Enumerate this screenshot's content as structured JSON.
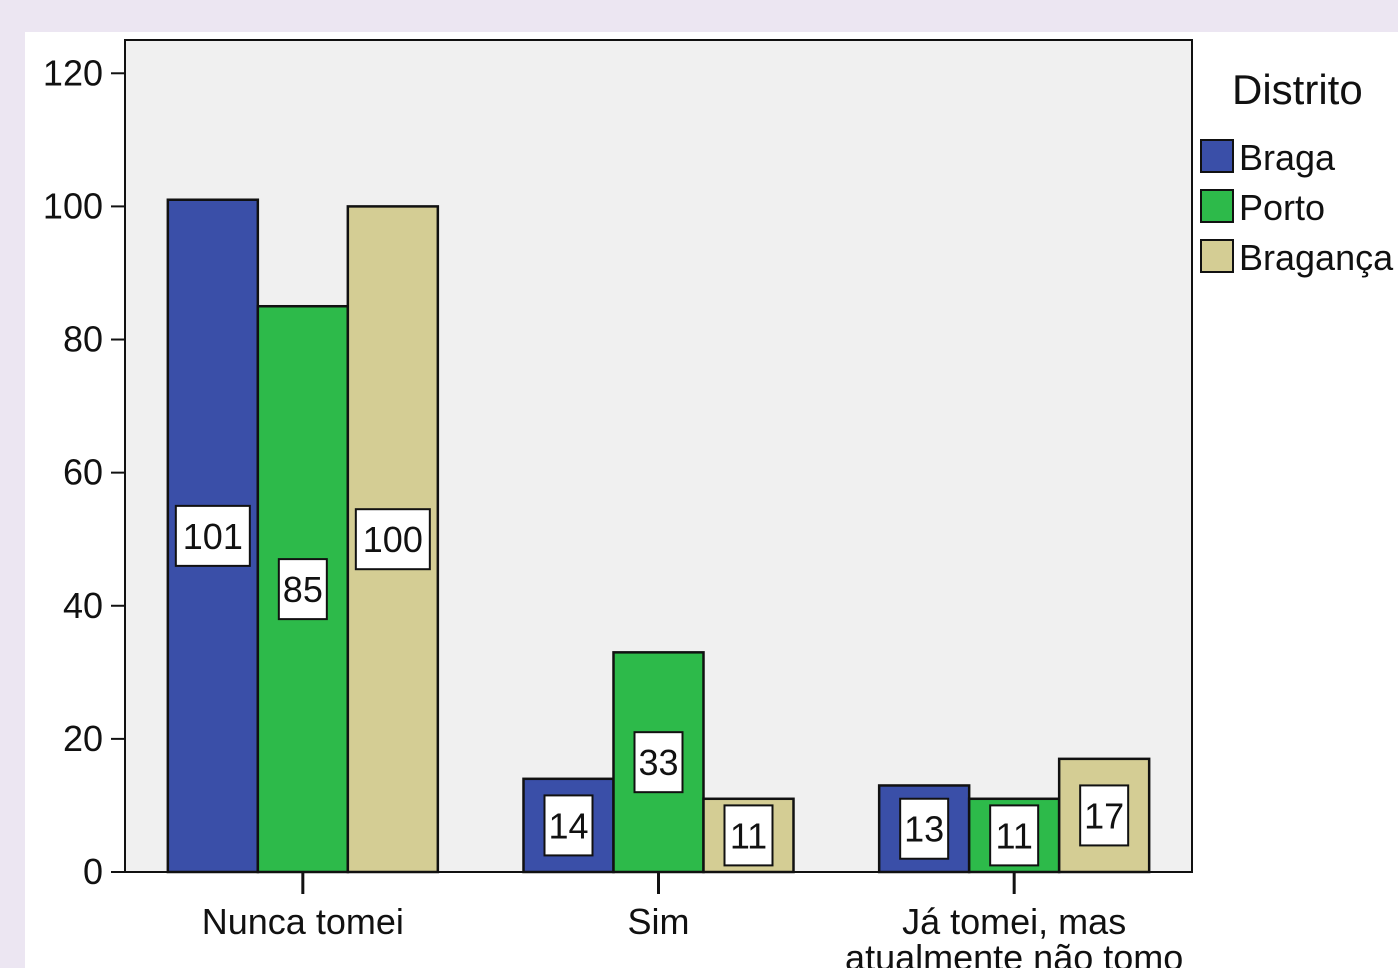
{
  "chart_data": {
    "type": "bar",
    "categories": [
      "Nunca tomei",
      "Sim",
      "Já tomei, mas atualmente não tomo"
    ],
    "category_label_lines": [
      [
        "Nunca tomei"
      ],
      [
        "Sim"
      ],
      [
        "Já tomei, mas",
        "atualmente não tomo"
      ]
    ],
    "series": [
      {
        "name": "Braga",
        "color": "#3a4fa8",
        "values": [
          101,
          14,
          13
        ]
      },
      {
        "name": "Porto",
        "color": "#2dba4a",
        "values": [
          85,
          33,
          11
        ]
      },
      {
        "name": "Bragança",
        "color": "#d4cd94",
        "values": [
          100,
          11,
          17
        ]
      }
    ],
    "yticks": [
      0,
      20,
      40,
      60,
      80,
      100,
      120
    ],
    "ylim": [
      0,
      125
    ],
    "legend": {
      "title": "Distrito",
      "placement": "right-top"
    },
    "plot_background": "#f0f0f0",
    "grid": false
  }
}
